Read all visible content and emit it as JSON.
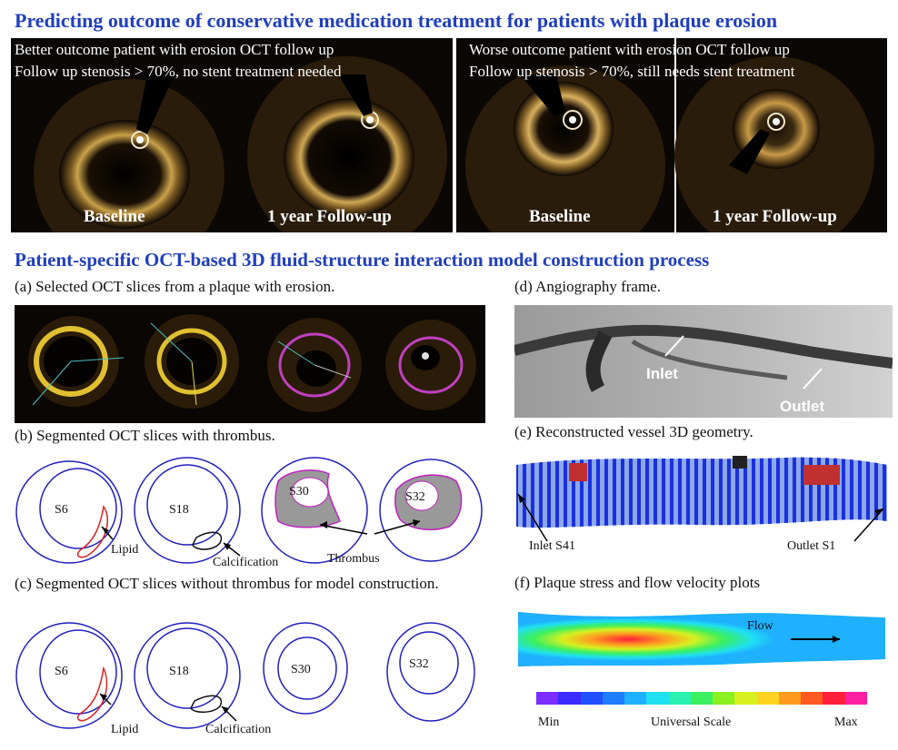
{
  "header": {
    "title": "Predicting outcome of conservative medication treatment for patients with plaque erosion"
  },
  "oct_left": {
    "line1": "Better outcome patient with erosion OCT follow up",
    "line2": "Follow up stenosis > 70%, no stent treatment needed",
    "label_baseline": "Baseline",
    "label_followup": "1 year Follow-up"
  },
  "oct_right": {
    "line1": "Worse outcome patient with erosion OCT follow up",
    "line2": "Follow up stenosis > 70%, still needs stent treatment",
    "label_baseline": "Baseline",
    "label_followup": "1 year Follow-up"
  },
  "section2": {
    "title": "Patient-specific OCT-based 3D fluid-structure interaction model construction process"
  },
  "panel_a": {
    "caption": "(a) Selected OCT slices from a plaque with erosion."
  },
  "panel_b": {
    "caption": "(b) Segmented OCT slices with thrombus.",
    "slices": [
      "S6",
      "S18",
      "S30",
      "S32"
    ],
    "lipid": "Lipid",
    "calcification": "Calcification",
    "thrombus": "Thrombus"
  },
  "panel_c": {
    "caption": "(c) Segmented OCT slices without thrombus for model construction.",
    "slices": [
      "S6",
      "S18",
      "S30",
      "S32"
    ],
    "lipid": "Lipid",
    "calcification": "Calcification"
  },
  "panel_d": {
    "caption": "(d) Angiography frame.",
    "inlet": "Inlet",
    "outlet": "Outlet"
  },
  "panel_e": {
    "caption": "(e) Reconstructed vessel 3D geometry.",
    "inlet": "Inlet S41",
    "outlet": "Outlet S1"
  },
  "panel_f": {
    "caption": "(f) Plaque stress and flow velocity plots",
    "flow": "Flow",
    "scale_min": "Min",
    "scale_mid": "Universal Scale",
    "scale_max": "Max",
    "scale_colors": [
      "#7b2cff",
      "#3a2bff",
      "#1f4fff",
      "#1e7cff",
      "#1fb0ff",
      "#1fe0f0",
      "#2af0b0",
      "#3af060",
      "#8af020",
      "#d8f020",
      "#ffd21f",
      "#ff9a1f",
      "#ff5a1f",
      "#ff1f3a",
      "#ff1fa0"
    ]
  }
}
